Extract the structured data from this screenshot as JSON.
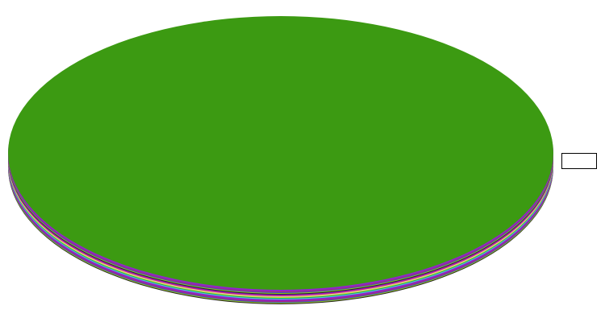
{
  "chart_data": {
    "type": "pie",
    "style": "3d",
    "title": "",
    "slices": [
      {
        "label": "",
        "value": 100,
        "color": "#3c9a12"
      }
    ],
    "side_stripe_colors": [
      "#40e0d0",
      "#9b1fd8",
      "#7a2fc0",
      "#c02080",
      "#3050c0",
      "#a0c820",
      "#202020",
      "#9020e0",
      "#e02060",
      "#c8c8c8",
      "#e0e020",
      "#20a060"
    ],
    "legend": {
      "position": "right",
      "entries": []
    }
  }
}
